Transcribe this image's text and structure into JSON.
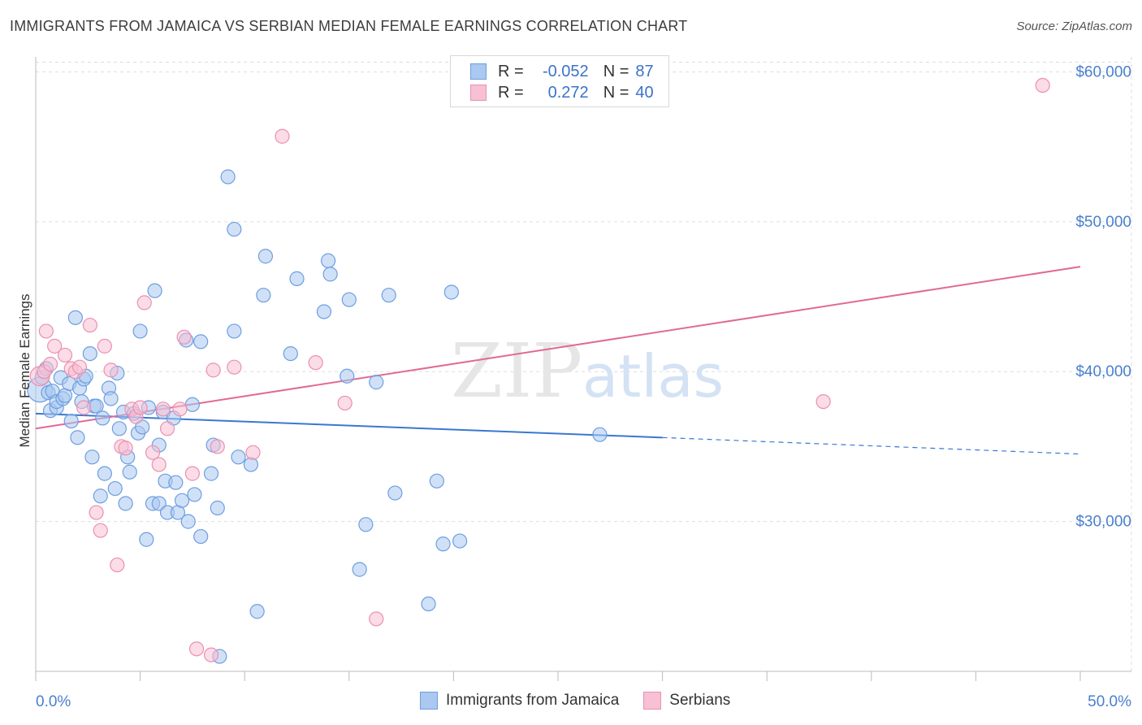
{
  "header": {
    "title": "IMMIGRANTS FROM JAMAICA VS SERBIAN MEDIAN FEMALE EARNINGS CORRELATION CHART",
    "source": "Source: ZipAtlas.com"
  },
  "watermark": {
    "zip": "ZIP",
    "atlas": "atlas"
  },
  "legend": {
    "rows": [
      {
        "r_label": "R =",
        "r_value": "-0.052",
        "n_label": "N =",
        "n_value": "87"
      },
      {
        "r_label": "R =",
        "r_value": "0.272",
        "n_label": "N =",
        "n_value": "40"
      }
    ]
  },
  "bottom_legend": {
    "items": [
      {
        "label": "Immigrants from Jamaica"
      },
      {
        "label": "Serbians"
      }
    ]
  },
  "colors": {
    "blue_fill": "#aac8f0",
    "blue_stroke": "#6e9ee0",
    "blue_line": "#3a78d0",
    "pink_fill": "#f7c0d4",
    "pink_stroke": "#ea90b2",
    "pink_line": "#e06a96",
    "grid": "#dedede",
    "axis_text": "#4a7fcc"
  },
  "chart_data": {
    "type": "scatter",
    "title": "IMMIGRANTS FROM JAMAICA VS SERBIAN MEDIAN FEMALE EARNINGS CORRELATION CHART",
    "xlabel": "",
    "ylabel": "Median Female Earnings",
    "xlim": [
      0,
      50
    ],
    "ylim": [
      20000,
      61000
    ],
    "x_tick_labels": [
      {
        "value": 0,
        "label": "0.0%"
      },
      {
        "value": 50,
        "label": "50.0%"
      }
    ],
    "y_tick_labels": [
      {
        "value": 30000,
        "label": "$30,000"
      },
      {
        "value": 40000,
        "label": "$40,000"
      },
      {
        "value": 50000,
        "label": "$50,000"
      },
      {
        "value": 60000,
        "label": "$60,000"
      }
    ],
    "series": [
      {
        "name": "Immigrants from Jamaica",
        "color": "#aac8f0",
        "trend": {
          "x0": 0,
          "y0": 37200,
          "x1": 30,
          "y1": 35600,
          "dash_to_x": 50,
          "dash_to_y": 34500
        },
        "points": [
          [
            0.2,
            38800,
            18
          ],
          [
            0.3,
            39600,
            10
          ],
          [
            0.5,
            40200,
            10
          ],
          [
            0.6,
            38600,
            10
          ],
          [
            0.7,
            37400,
            10
          ],
          [
            0.8,
            38700,
            10
          ],
          [
            1.0,
            37600,
            10
          ],
          [
            1.0,
            38000,
            10
          ],
          [
            1.2,
            39600,
            10
          ],
          [
            1.3,
            38200,
            10
          ],
          [
            1.4,
            38400,
            10
          ],
          [
            1.6,
            39200,
            10
          ],
          [
            1.7,
            36700,
            10
          ],
          [
            1.9,
            43600,
            10
          ],
          [
            2.0,
            35600,
            10
          ],
          [
            2.1,
            38900,
            10
          ],
          [
            2.2,
            38000,
            10
          ],
          [
            2.3,
            39500,
            10
          ],
          [
            2.4,
            39700,
            10
          ],
          [
            2.6,
            41200,
            10
          ],
          [
            2.7,
            34300,
            10
          ],
          [
            2.8,
            37700,
            10
          ],
          [
            2.9,
            37700,
            10
          ],
          [
            3.1,
            31700,
            10
          ],
          [
            3.2,
            36900,
            10
          ],
          [
            3.3,
            33200,
            10
          ],
          [
            3.5,
            38900,
            10
          ],
          [
            3.6,
            38200,
            10
          ],
          [
            3.8,
            32200,
            10
          ],
          [
            3.9,
            39900,
            10
          ],
          [
            4.0,
            36200,
            10
          ],
          [
            4.2,
            37300,
            10
          ],
          [
            4.3,
            31200,
            10
          ],
          [
            4.4,
            34300,
            10
          ],
          [
            4.5,
            33300,
            10
          ],
          [
            4.7,
            37200,
            10
          ],
          [
            4.9,
            35900,
            10
          ],
          [
            5.0,
            42700,
            10
          ],
          [
            5.1,
            36300,
            10
          ],
          [
            5.3,
            28800,
            10
          ],
          [
            5.4,
            37600,
            10
          ],
          [
            5.6,
            31200,
            10
          ],
          [
            5.7,
            45400,
            10
          ],
          [
            5.9,
            35100,
            10
          ],
          [
            5.9,
            31200,
            10
          ],
          [
            6.1,
            37300,
            10
          ],
          [
            6.2,
            32700,
            10
          ],
          [
            6.3,
            30600,
            10
          ],
          [
            6.6,
            36900,
            10
          ],
          [
            6.7,
            32600,
            10
          ],
          [
            6.8,
            30600,
            10
          ],
          [
            7.0,
            31400,
            10
          ],
          [
            7.2,
            42100,
            10
          ],
          [
            7.3,
            30000,
            10
          ],
          [
            7.5,
            37800,
            10
          ],
          [
            7.6,
            31800,
            10
          ],
          [
            7.9,
            29000,
            10
          ],
          [
            7.9,
            42000,
            10
          ],
          [
            8.4,
            33200,
            10
          ],
          [
            8.5,
            35100,
            10
          ],
          [
            8.7,
            30900,
            10
          ],
          [
            8.8,
            21000,
            10
          ],
          [
            9.2,
            53000,
            10
          ],
          [
            9.5,
            49500,
            10
          ],
          [
            9.5,
            42700,
            10
          ],
          [
            9.7,
            34300,
            10
          ],
          [
            10.3,
            33800,
            10
          ],
          [
            10.6,
            24000,
            10
          ],
          [
            10.9,
            45100,
            10
          ],
          [
            11.0,
            47700,
            10
          ],
          [
            12.5,
            46200,
            10
          ],
          [
            12.2,
            41200,
            10
          ],
          [
            13.8,
            44000,
            10
          ],
          [
            14.0,
            47400,
            10
          ],
          [
            14.1,
            46500,
            10
          ],
          [
            14.9,
            39700,
            10
          ],
          [
            15.0,
            44800,
            10
          ],
          [
            15.5,
            26800,
            10
          ],
          [
            15.8,
            29800,
            10
          ],
          [
            16.3,
            39300,
            10
          ],
          [
            16.9,
            45100,
            10
          ],
          [
            17.2,
            31900,
            10
          ],
          [
            18.8,
            24500,
            10
          ],
          [
            19.2,
            32700,
            10
          ],
          [
            19.5,
            28500,
            10
          ],
          [
            19.9,
            45300,
            10
          ],
          [
            20.3,
            28700,
            10
          ],
          [
            27.0,
            35800,
            10
          ]
        ]
      },
      {
        "name": "Serbians",
        "color": "#f7c0d4",
        "trend": {
          "x0": 0,
          "y0": 36200,
          "x1": 50,
          "y1": 47000
        },
        "points": [
          [
            0.2,
            39700,
            14
          ],
          [
            0.4,
            40000,
            10
          ],
          [
            0.5,
            42700,
            10
          ],
          [
            0.7,
            40500,
            10
          ],
          [
            0.9,
            41700,
            10
          ],
          [
            1.4,
            41100,
            10
          ],
          [
            1.7,
            40200,
            10
          ],
          [
            1.9,
            40000,
            10
          ],
          [
            2.1,
            40300,
            10
          ],
          [
            2.3,
            37600,
            10
          ],
          [
            2.6,
            43100,
            10
          ],
          [
            2.9,
            30600,
            10
          ],
          [
            3.1,
            29400,
            10
          ],
          [
            3.3,
            41700,
            10
          ],
          [
            3.6,
            40100,
            10
          ],
          [
            3.9,
            27100,
            10
          ],
          [
            4.1,
            35000,
            10
          ],
          [
            4.3,
            34900,
            10
          ],
          [
            4.6,
            37500,
            10
          ],
          [
            4.8,
            37000,
            10
          ],
          [
            5.0,
            37600,
            10
          ],
          [
            5.2,
            44600,
            10
          ],
          [
            5.6,
            34600,
            10
          ],
          [
            5.9,
            33800,
            10
          ],
          [
            6.1,
            37500,
            10
          ],
          [
            6.3,
            36200,
            10
          ],
          [
            6.9,
            37500,
            10
          ],
          [
            7.1,
            42300,
            10
          ],
          [
            7.5,
            33200,
            10
          ],
          [
            7.7,
            21500,
            10
          ],
          [
            8.4,
            21100,
            10
          ],
          [
            8.5,
            40100,
            10
          ],
          [
            8.7,
            35000,
            10
          ],
          [
            9.5,
            40300,
            10
          ],
          [
            10.4,
            34600,
            10
          ],
          [
            11.8,
            55700,
            10
          ],
          [
            13.4,
            40600,
            10
          ],
          [
            14.8,
            37900,
            10
          ],
          [
            16.3,
            23500,
            10
          ],
          [
            37.7,
            38000,
            10
          ],
          [
            48.2,
            59100,
            10
          ]
        ]
      }
    ]
  }
}
